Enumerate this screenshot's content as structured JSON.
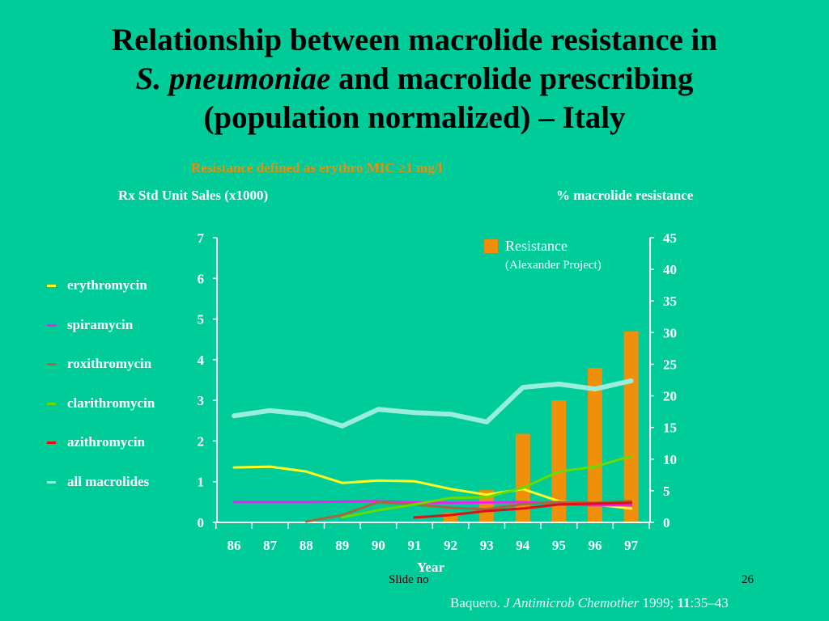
{
  "slide": {
    "title_line1": "Relationship between macrolide resistance in",
    "title_line2_italic": "S. pneumoniae",
    "title_line2_rest": " and macrolide prescribing",
    "title_line3": "(population normalized) – Italy",
    "subtitle": "Resistance defined as erythro MIC ≥1 mg/l",
    "slide_no_label": "Slide no",
    "page_number": "26",
    "citation": {
      "author": "Baquero. ",
      "journal": "J Antimicrob Chemother",
      "year": " 1999; ",
      "volume": "11",
      "pages": ":35–43"
    },
    "colors": {
      "background": "#00cc99",
      "title": "#000000",
      "subtitle": "#e8900a"
    }
  },
  "chart_data": {
    "type": "line+bar",
    "title": "Relationship between macrolide resistance in S. pneumoniae and macrolide prescribing (population normalized) – Italy",
    "subtitle": "Resistance defined as erythro MIC ≥1 mg/l",
    "xlabel": "Year",
    "ylabel_left": "Rx Std Unit Sales (x1000)",
    "ylabel_right": "% macrolide resistance",
    "x": [
      "86",
      "87",
      "88",
      "89",
      "90",
      "91",
      "92",
      "93",
      "94",
      "95",
      "96",
      "97"
    ],
    "ylim_left": [
      0,
      7
    ],
    "yticks_left": [
      "0",
      "1",
      "2",
      "3",
      "4",
      "5",
      "6",
      "7"
    ],
    "ylim_right": [
      0,
      45
    ],
    "yticks_right": [
      "0",
      "5",
      "10",
      "15",
      "20",
      "25",
      "30",
      "35",
      "40",
      "45"
    ],
    "grid": false,
    "legend_placement": "left",
    "series": [
      {
        "name": "erythromycin",
        "axis": "left",
        "kind": "line",
        "color": "#ffff22",
        "values": [
          1.35,
          1.37,
          1.25,
          0.97,
          1.03,
          1.01,
          0.82,
          0.68,
          0.82,
          0.52,
          0.44,
          0.34
        ]
      },
      {
        "name": "spiramycin",
        "axis": "left",
        "kind": "line",
        "color": "#ee22ee",
        "values": [
          0.5,
          0.5,
          0.5,
          0.51,
          0.52,
          0.49,
          0.48,
          0.49,
          0.5,
          0.45,
          0.42,
          0.42
        ]
      },
      {
        "name": "roxithromycin",
        "axis": "left",
        "kind": "line",
        "color": "#a8683a",
        "values": [
          null,
          null,
          0.02,
          0.18,
          0.5,
          0.44,
          0.36,
          0.32,
          0.45,
          0.5,
          0.48,
          0.52
        ]
      },
      {
        "name": "clarithromycin",
        "axis": "left",
        "kind": "line",
        "color": "#66dd00",
        "values": [
          null,
          null,
          null,
          0.12,
          0.3,
          0.44,
          0.6,
          0.62,
          0.85,
          1.25,
          1.37,
          1.63
        ]
      },
      {
        "name": "azithromycin",
        "axis": "left",
        "kind": "line",
        "color": "#dd1111",
        "values": [
          null,
          null,
          null,
          null,
          null,
          0.12,
          0.18,
          0.28,
          0.34,
          0.44,
          0.46,
          0.48
        ]
      },
      {
        "name": "all macrolides",
        "axis": "left",
        "kind": "line",
        "color": "#99eedd",
        "values": [
          2.62,
          2.75,
          2.66,
          2.37,
          2.78,
          2.7,
          2.66,
          2.47,
          3.32,
          3.4,
          3.28,
          3.48
        ]
      },
      {
        "name": "Resistance",
        "sublabel": "(Alexander Project)",
        "axis": "right",
        "kind": "bar",
        "color": "#f0900a",
        "values": [
          null,
          null,
          null,
          null,
          null,
          null,
          1.5,
          5.1,
          14,
          19.3,
          24.4,
          30.2
        ]
      }
    ]
  }
}
